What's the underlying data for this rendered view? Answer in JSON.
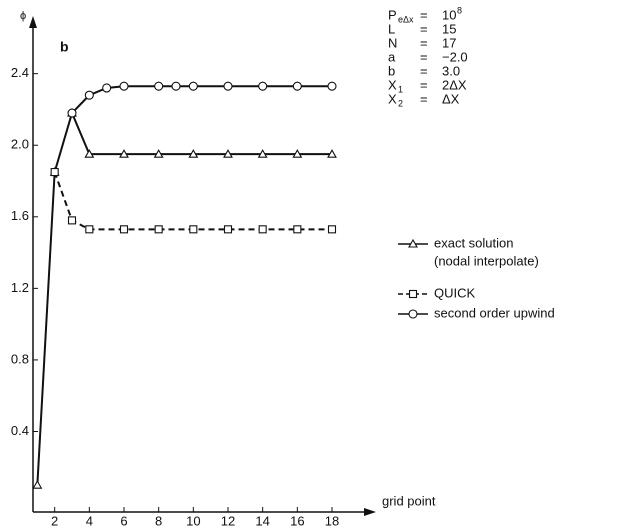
{
  "chart_data": {
    "type": "line",
    "panel_label": "b",
    "y_label": "ϕ",
    "x_label": "grid point",
    "xlim": [
      0.75,
      19.5
    ],
    "ylim": [
      -0.05,
      2.7
    ],
    "xticks": [
      2,
      4,
      6,
      8,
      10,
      12,
      14,
      16,
      18
    ],
    "yticks": [
      0.4,
      0.8,
      1.2,
      1.6,
      {
        "value": 2.0,
        "label": "2.0"
      },
      2.4
    ],
    "series": [
      {
        "name": "exact solution",
        "note": "(nodal interpolate)",
        "marker": "triangle",
        "dashed": false,
        "color": "#111",
        "x": [
          1,
          2,
          3,
          4,
          6,
          8,
          10,
          12,
          14,
          16,
          18
        ],
        "values": [
          0.1,
          1.85,
          2.18,
          1.95,
          1.95,
          1.95,
          1.95,
          1.95,
          1.95,
          1.95,
          1.95
        ]
      },
      {
        "name": "QUICK",
        "marker": "square",
        "dashed": true,
        "color": "#111",
        "x": [
          2,
          3,
          4,
          6,
          8,
          10,
          12,
          14,
          16,
          18
        ],
        "values": [
          1.85,
          1.58,
          1.53,
          1.53,
          1.53,
          1.53,
          1.53,
          1.53,
          1.53,
          1.53
        ]
      },
      {
        "name": "second order upwind",
        "marker": "circle",
        "dashed": false,
        "color": "#111",
        "x": [
          3,
          4,
          5,
          6,
          8,
          9,
          10,
          12,
          14,
          16,
          18
        ],
        "values": [
          2.18,
          2.28,
          2.32,
          2.33,
          2.33,
          2.33,
          2.33,
          2.33,
          2.33,
          2.33,
          2.33
        ]
      }
    ],
    "parameters": {
      "equals": "=",
      "items": [
        {
          "label": "P",
          "sub": "eΔx",
          "value": "10",
          "sup": "8"
        },
        {
          "label": "L",
          "value": "15"
        },
        {
          "label": "N",
          "value": "17"
        },
        {
          "label": "a",
          "value": "−2.0"
        },
        {
          "label": "b",
          "value": "3.0"
        },
        {
          "label": "X",
          "sub": "1",
          "value": "2ΔX"
        },
        {
          "label": "X",
          "sub": "2",
          "value": "ΔX"
        }
      ]
    }
  }
}
